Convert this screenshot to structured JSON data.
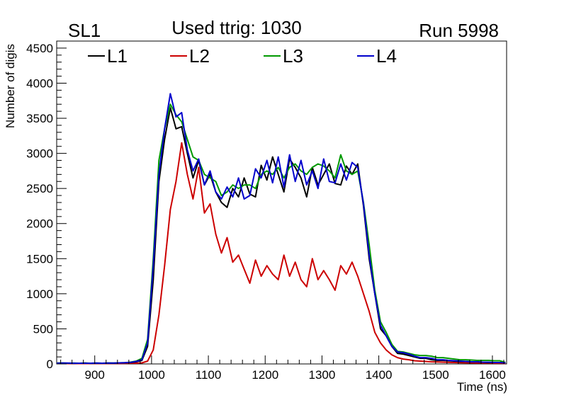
{
  "header": {
    "left_label": "SL1",
    "center_label": "Used ttrig: 1030",
    "right_label": "Run 5998"
  },
  "chart_data": {
    "type": "line",
    "xlabel": "Time (ns)",
    "ylabel": "Number of digis",
    "xlim": [
      833,
      1625
    ],
    "ylim": [
      0,
      4600
    ],
    "x_ticks": [
      900,
      1000,
      1100,
      1200,
      1300,
      1400,
      1500,
      1600
    ],
    "y_ticks": [
      0,
      500,
      1000,
      1500,
      2000,
      2500,
      3000,
      3500,
      4000,
      4500
    ],
    "legend_position": "top",
    "x": [
      833,
      843,
      853,
      863,
      873,
      883,
      893,
      903,
      913,
      923,
      933,
      943,
      953,
      963,
      973,
      983,
      993,
      1003,
      1013,
      1023,
      1033,
      1043,
      1053,
      1063,
      1073,
      1083,
      1093,
      1103,
      1113,
      1123,
      1133,
      1143,
      1153,
      1163,
      1173,
      1183,
      1193,
      1203,
      1213,
      1223,
      1233,
      1243,
      1253,
      1263,
      1273,
      1283,
      1293,
      1303,
      1313,
      1323,
      1333,
      1343,
      1353,
      1363,
      1373,
      1383,
      1393,
      1403,
      1413,
      1423,
      1433,
      1443,
      1453,
      1463,
      1473,
      1483,
      1493,
      1503,
      1513,
      1523,
      1533,
      1543,
      1553,
      1563,
      1573,
      1583,
      1593,
      1603,
      1613,
      1623
    ],
    "series": [
      {
        "name": "L1",
        "color": "#000000",
        "values": [
          10,
          12,
          10,
          8,
          10,
          12,
          8,
          10,
          9,
          12,
          10,
          15,
          15,
          20,
          30,
          50,
          250,
          1200,
          2600,
          3200,
          3650,
          3350,
          3380,
          3000,
          2650,
          2900,
          2550,
          2700,
          2450,
          2300,
          2230,
          2500,
          2380,
          2650,
          2420,
          2380,
          2830,
          2620,
          2950,
          2700,
          2450,
          2920,
          2800,
          2650,
          2380,
          2800,
          2550,
          2700,
          2850,
          2570,
          2550,
          2820,
          2700,
          2850,
          2250,
          1500,
          1000,
          500,
          400,
          250,
          150,
          140,
          120,
          100,
          80,
          80,
          60,
          50,
          50,
          45,
          40,
          35,
          35,
          30,
          30,
          25,
          20,
          20,
          20,
          15
        ]
      },
      {
        "name": "L2",
        "color": "#cc0000",
        "values": [
          5,
          5,
          6,
          5,
          5,
          5,
          5,
          5,
          5,
          6,
          6,
          8,
          8,
          10,
          10,
          15,
          40,
          200,
          700,
          1400,
          2200,
          2600,
          3150,
          2700,
          2350,
          2800,
          2150,
          2280,
          1850,
          1580,
          1800,
          1450,
          1550,
          1350,
          1150,
          1480,
          1250,
          1400,
          1280,
          1200,
          1550,
          1250,
          1450,
          1200,
          1100,
          1500,
          1200,
          1330,
          1200,
          1050,
          1400,
          1280,
          1450,
          1250,
          1000,
          750,
          450,
          300,
          200,
          130,
          90,
          70,
          60,
          45,
          40,
          35,
          30,
          28,
          25,
          22,
          20,
          18,
          16,
          15,
          14,
          12,
          12,
          10,
          10,
          8
        ]
      },
      {
        "name": "L3",
        "color": "#009900",
        "values": [
          12,
          12,
          10,
          12,
          10,
          12,
          10,
          12,
          10,
          12,
          12,
          15,
          18,
          25,
          40,
          80,
          350,
          1500,
          2900,
          3350,
          3700,
          3550,
          3450,
          3200,
          2950,
          2900,
          2700,
          2650,
          2600,
          2400,
          2450,
          2550,
          2500,
          2550,
          2550,
          2500,
          2700,
          2750,
          2700,
          2800,
          2650,
          2800,
          2850,
          2750,
          2700,
          2800,
          2850,
          2820,
          2750,
          2650,
          2980,
          2750,
          2700,
          2750,
          2300,
          1700,
          1050,
          600,
          450,
          280,
          180,
          170,
          150,
          130,
          120,
          120,
          110,
          90,
          90,
          80,
          70,
          60,
          60,
          55,
          50,
          50,
          50,
          45,
          45,
          20
        ]
      },
      {
        "name": "L4",
        "color": "#0000cc",
        "values": [
          10,
          12,
          12,
          10,
          10,
          10,
          10,
          12,
          10,
          12,
          12,
          15,
          18,
          22,
          35,
          60,
          300,
          1400,
          2700,
          3350,
          3850,
          3520,
          3580,
          3050,
          2750,
          2920,
          2550,
          2750,
          2450,
          2350,
          2520,
          2380,
          2650,
          2350,
          2400,
          2780,
          2650,
          2900,
          2580,
          2950,
          2520,
          2980,
          2600,
          2900,
          2550,
          2750,
          2500,
          2920,
          2600,
          2580,
          2850,
          2620,
          2870,
          2800,
          2280,
          1550,
          1000,
          550,
          400,
          250,
          170,
          160,
          140,
          110,
          90,
          90,
          80,
          60,
          60,
          50,
          45,
          40,
          35,
          30,
          30,
          25,
          25,
          20,
          20,
          15
        ]
      }
    ]
  }
}
